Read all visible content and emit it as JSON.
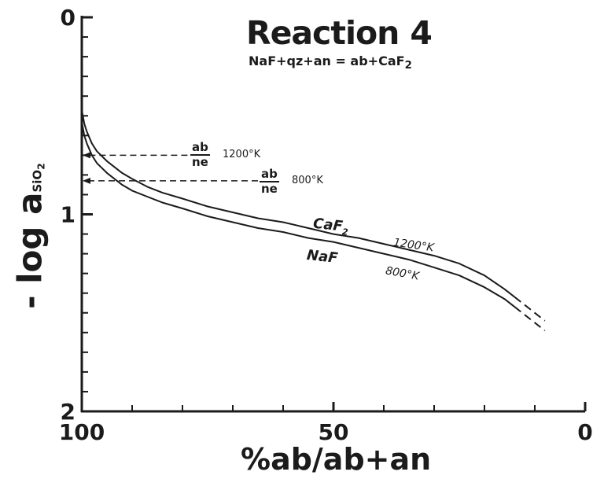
{
  "chart": {
    "title": "Reaction",
    "title_number": "4",
    "equation_html": "NaF+qz+an = ab+CaF<sub>2</sub>",
    "ylabel_main": "- log a",
    "ylabel_sub": "SiO2",
    "xlabel": "%ab/ab+an",
    "annotations": [
      {
        "num": "ab",
        "den": "ne",
        "temp": "1200°K"
      },
      {
        "num": "ab",
        "den": "ne",
        "temp": "800°K"
      }
    ],
    "series_labels": [
      {
        "name": "CaF2",
        "temp": "1200°K"
      },
      {
        "name": "NaF",
        "temp": "800°K"
      }
    ]
  },
  "chart_data": {
    "type": "line",
    "title": "Reaction 4",
    "subtitle": "NaF+qz+an = ab+CaF2",
    "xlabel": "%ab/ab+an",
    "ylabel": "- log aSiO2",
    "xlim": [
      100,
      0
    ],
    "ylim": [
      0,
      2
    ],
    "x_reversed": true,
    "y_inverted": true,
    "x_ticks": [
      100,
      50,
      0
    ],
    "y_ticks": [
      0,
      1,
      2
    ],
    "grid": false,
    "series": [
      {
        "name": "CaF2",
        "temperature": "1200°K",
        "x": [
          100,
          99.5,
          99,
          98,
          97,
          95,
          92,
          90,
          87,
          84,
          80,
          75,
          70,
          65,
          60,
          55,
          50,
          45,
          40,
          35,
          30,
          25,
          20,
          16,
          14
        ],
        "y": [
          0.47,
          0.54,
          0.58,
          0.64,
          0.68,
          0.73,
          0.79,
          0.82,
          0.86,
          0.89,
          0.92,
          0.96,
          0.99,
          1.02,
          1.04,
          1.07,
          1.1,
          1.12,
          1.15,
          1.18,
          1.21,
          1.25,
          1.31,
          1.38,
          1.42
        ],
        "dashed_extension": {
          "x": [
            14,
            12,
            10,
            8
          ],
          "y": [
            1.42,
            1.46,
            1.5,
            1.54
          ]
        }
      },
      {
        "name": "NaF",
        "temperature": "800°K",
        "x": [
          100,
          99.5,
          99,
          98,
          97,
          95,
          92,
          90,
          87,
          84,
          80,
          75,
          70,
          65,
          60,
          55,
          50,
          45,
          40,
          35,
          30,
          25,
          20,
          16,
          14
        ],
        "y": [
          0.53,
          0.6,
          0.64,
          0.7,
          0.74,
          0.79,
          0.85,
          0.88,
          0.91,
          0.94,
          0.97,
          1.01,
          1.04,
          1.07,
          1.09,
          1.12,
          1.14,
          1.17,
          1.2,
          1.23,
          1.27,
          1.31,
          1.37,
          1.43,
          1.47
        ],
        "dashed_extension": {
          "x": [
            14,
            12,
            10,
            8
          ],
          "y": [
            1.47,
            1.51,
            1.55,
            1.59
          ]
        }
      }
    ],
    "reference_lines": [
      {
        "label": "ab/ne 1200°K",
        "y": 0.7,
        "x_from": 79,
        "x_to": 100
      },
      {
        "label": "ab/ne 800°K",
        "y": 0.83,
        "x_from": 65,
        "x_to": 100
      }
    ]
  }
}
